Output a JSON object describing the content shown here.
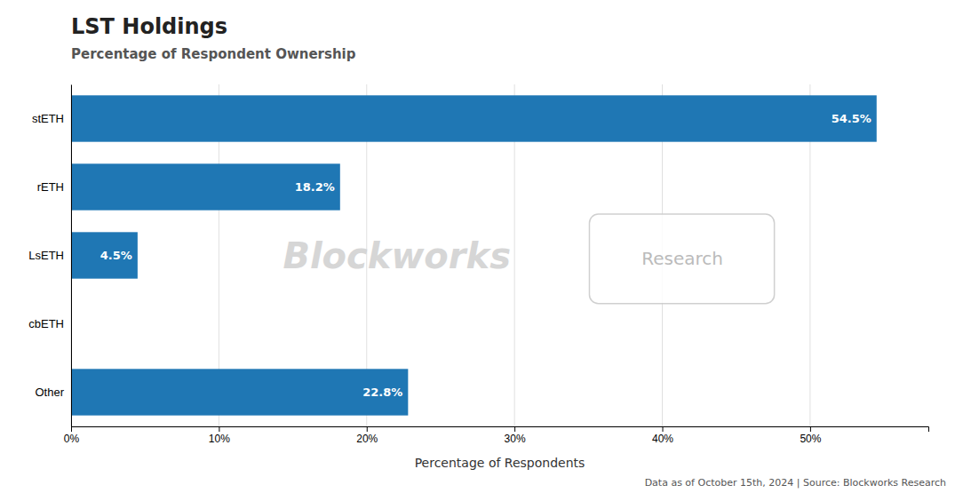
{
  "chart_data": {
    "type": "bar",
    "orientation": "horizontal",
    "title": "LST Holdings",
    "subtitle": "Percentage of Respondent Ownership",
    "xlabel": "Percentage of Respondents",
    "categories": [
      "stETH",
      "rETH",
      "LsETH",
      "cbETH",
      "Other"
    ],
    "values": [
      54.5,
      18.2,
      4.5,
      0.0,
      22.8
    ],
    "data_labels": true,
    "value_labels": [
      "54.5%",
      "18.2%",
      "4.5%",
      null,
      "22.8%"
    ],
    "xlim": [
      0,
      58
    ],
    "xticks": [
      {
        "value": 0,
        "label": "0%"
      },
      {
        "value": 10,
        "label": "10%"
      },
      {
        "value": 20,
        "label": "20%"
      },
      {
        "value": 30,
        "label": "30%"
      },
      {
        "value": 40,
        "label": "40%"
      },
      {
        "value": 50,
        "label": "50%"
      }
    ],
    "grid": true,
    "annotations": [
      "Blockworks",
      "Research",
      "Data as of October 15th, 2024 | Source: Blockworks Research"
    ]
  }
}
